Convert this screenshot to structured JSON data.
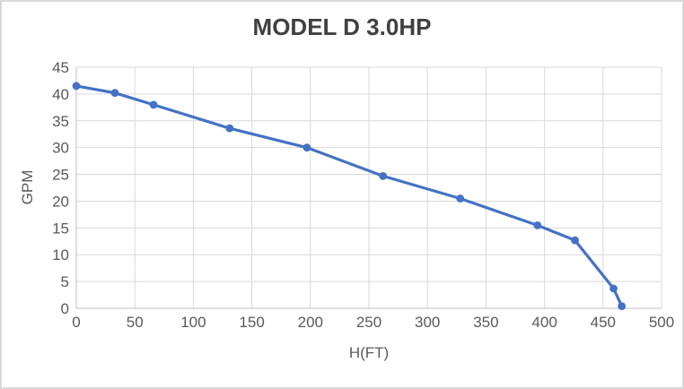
{
  "chart_data": {
    "type": "line",
    "title": "MODEL D 3.0HP",
    "xlabel": "H(FT)",
    "ylabel": "GPM",
    "series": [
      {
        "name": "MODEL D 3.0HP",
        "x": [
          0,
          33,
          66,
          131,
          197,
          262,
          328,
          394,
          426,
          459,
          466
        ],
        "y": [
          41.5,
          40.2,
          38.0,
          33.6,
          30.0,
          24.7,
          20.5,
          15.5,
          12.7,
          3.7,
          0.4
        ]
      }
    ],
    "xlim": [
      0,
      500
    ],
    "ylim": [
      0,
      45
    ],
    "xticks": [
      0,
      50,
      100,
      150,
      200,
      250,
      300,
      350,
      400,
      450,
      500
    ],
    "yticks": [
      0,
      5,
      10,
      15,
      20,
      25,
      30,
      35,
      40,
      45
    ],
    "grid": true,
    "legend": false,
    "marker": "circle",
    "colors": {
      "line": "#4472C4",
      "marker": "#4472C4",
      "gridline": "#D9D9D9",
      "axis_line": "#BFBFBF",
      "tick_label": "#595959",
      "title": "#404040",
      "axis_title": "#595959",
      "background": "#FFFFFF",
      "border": "#D9D9D9"
    }
  }
}
